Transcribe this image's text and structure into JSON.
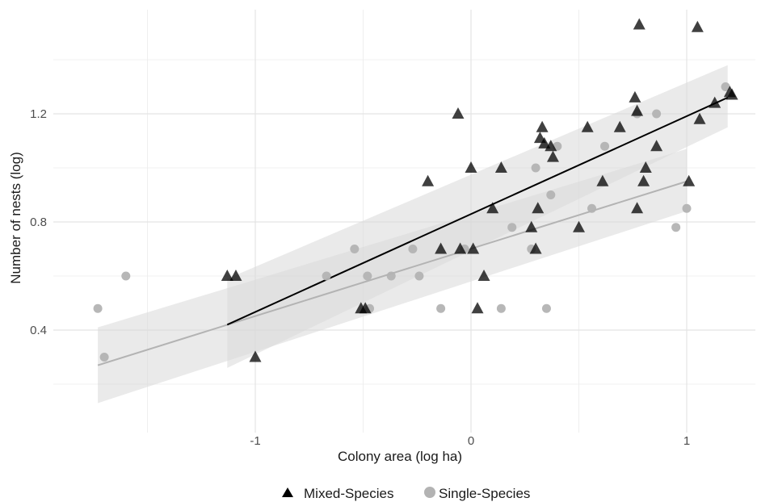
{
  "chart_data": {
    "type": "scatter",
    "title": "",
    "xlabel": "Colony area (log ha)",
    "ylabel": "Number of nests (log)",
    "xlim": [
      -1.75,
      1.25
    ],
    "ylim": [
      0.2,
      1.5
    ],
    "x_ticks": [
      -1,
      0,
      1
    ],
    "x_tick_labels": [
      "-1",
      "0",
      "1"
    ],
    "y_ticks": [
      0.4,
      0.8,
      1.2
    ],
    "y_tick_labels": [
      "0.4",
      "0.8",
      "1.2"
    ],
    "grid": true,
    "legend_position": "bottom",
    "series": [
      {
        "name": "Mixed-Species",
        "marker": "triangle",
        "color": "#000000",
        "points": [
          [
            -1.13,
            0.6
          ],
          [
            -1.09,
            0.6
          ],
          [
            -1.0,
            0.3
          ],
          [
            -0.51,
            0.48
          ],
          [
            -0.49,
            0.48
          ],
          [
            -0.2,
            0.95
          ],
          [
            -0.14,
            0.7
          ],
          [
            -0.06,
            1.2
          ],
          [
            -0.05,
            0.7
          ],
          [
            0.0,
            1.0
          ],
          [
            0.01,
            0.7
          ],
          [
            0.03,
            0.48
          ],
          [
            0.06,
            0.6
          ],
          [
            0.1,
            0.85
          ],
          [
            0.14,
            1.0
          ],
          [
            0.28,
            0.78
          ],
          [
            0.3,
            0.7
          ],
          [
            0.31,
            0.85
          ],
          [
            0.32,
            1.11
          ],
          [
            0.33,
            1.15
          ],
          [
            0.34,
            1.09
          ],
          [
            0.37,
            1.08
          ],
          [
            0.38,
            1.04
          ],
          [
            0.5,
            0.78
          ],
          [
            0.54,
            1.15
          ],
          [
            0.61,
            0.95
          ],
          [
            0.69,
            1.15
          ],
          [
            0.76,
            1.26
          ],
          [
            0.77,
            1.21
          ],
          [
            0.77,
            0.85
          ],
          [
            0.78,
            1.53
          ],
          [
            0.8,
            0.95
          ],
          [
            0.81,
            1.0
          ],
          [
            0.86,
            1.08
          ],
          [
            1.01,
            0.95
          ],
          [
            1.05,
            1.52
          ],
          [
            1.06,
            1.18
          ],
          [
            1.13,
            1.24
          ],
          [
            1.2,
            1.28
          ],
          [
            1.21,
            1.27
          ]
        ],
        "fit_line": [
          [
            -1.13,
            0.42
          ],
          [
            1.19,
            1.26
          ]
        ],
        "confidence_band": {
          "x": [
            -1.13,
            1.19
          ],
          "lower": [
            0.26,
            1.15
          ],
          "upper": [
            0.59,
            1.38
          ]
        }
      },
      {
        "name": "Single-Species",
        "marker": "circle",
        "color": "#b3b3b3",
        "points": [
          [
            -1.73,
            0.48
          ],
          [
            -1.7,
            0.3
          ],
          [
            -1.6,
            0.6
          ],
          [
            -0.67,
            0.6
          ],
          [
            -0.54,
            0.7
          ],
          [
            -0.48,
            0.6
          ],
          [
            -0.47,
            0.48
          ],
          [
            -0.37,
            0.6
          ],
          [
            -0.27,
            0.7
          ],
          [
            -0.24,
            0.6
          ],
          [
            -0.14,
            0.48
          ],
          [
            -0.03,
            0.7
          ],
          [
            0.14,
            0.48
          ],
          [
            0.19,
            0.78
          ],
          [
            0.28,
            0.7
          ],
          [
            0.3,
            1.0
          ],
          [
            0.35,
            0.48
          ],
          [
            0.37,
            0.9
          ],
          [
            0.4,
            1.08
          ],
          [
            0.56,
            0.85
          ],
          [
            0.62,
            1.08
          ],
          [
            0.77,
            1.2
          ],
          [
            0.86,
            1.2
          ],
          [
            0.95,
            0.78
          ],
          [
            1.0,
            0.85
          ],
          [
            1.18,
            1.3
          ]
        ],
        "fit_line": [
          [
            -1.73,
            0.27
          ],
          [
            1.0,
            0.95
          ]
        ],
        "confidence_band": {
          "x": [
            -1.73,
            1.0
          ],
          "lower": [
            0.13,
            0.84
          ],
          "upper": [
            0.41,
            1.07
          ]
        }
      }
    ]
  },
  "legend": {
    "items": [
      {
        "label": "Mixed-Species",
        "marker": "triangle",
        "color": "#000000"
      },
      {
        "label": "Single-Species",
        "marker": "circle",
        "color": "#b3b3b3"
      }
    ]
  }
}
